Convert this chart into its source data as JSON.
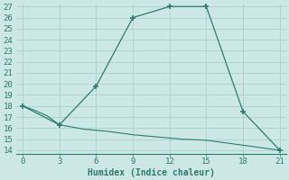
{
  "xlabel": "Humidex (Indice chaleur)",
  "upper_x": [
    0,
    3,
    6,
    9,
    12,
    15,
    18,
    21
  ],
  "upper_y": [
    18,
    16.3,
    19.8,
    26,
    27,
    27,
    17.5,
    14
  ],
  "lower_x": [
    0,
    1,
    2,
    3,
    4,
    5,
    6,
    7,
    8,
    9,
    10,
    11,
    12,
    13,
    14,
    15,
    16,
    17,
    18,
    19,
    20,
    21
  ],
  "lower_y": [
    18,
    17.6,
    17.1,
    16.3,
    16.1,
    15.9,
    15.8,
    15.7,
    15.55,
    15.4,
    15.3,
    15.2,
    15.1,
    15.0,
    14.95,
    14.9,
    14.75,
    14.6,
    14.45,
    14.3,
    14.15,
    14.0
  ],
  "line_color": "#2e7b6e",
  "bg_color": "#cce8e4",
  "grid_color": "#aacfcc",
  "ylim_min": 13.7,
  "ylim_max": 27.3,
  "xlim_min": -0.5,
  "xlim_max": 21.5,
  "yticks": [
    14,
    15,
    16,
    17,
    18,
    19,
    20,
    21,
    22,
    23,
    24,
    25,
    26,
    27
  ],
  "xticks": [
    0,
    3,
    6,
    9,
    12,
    15,
    18,
    21
  ],
  "tick_fontsize": 6.5,
  "xlabel_fontsize": 7.0
}
